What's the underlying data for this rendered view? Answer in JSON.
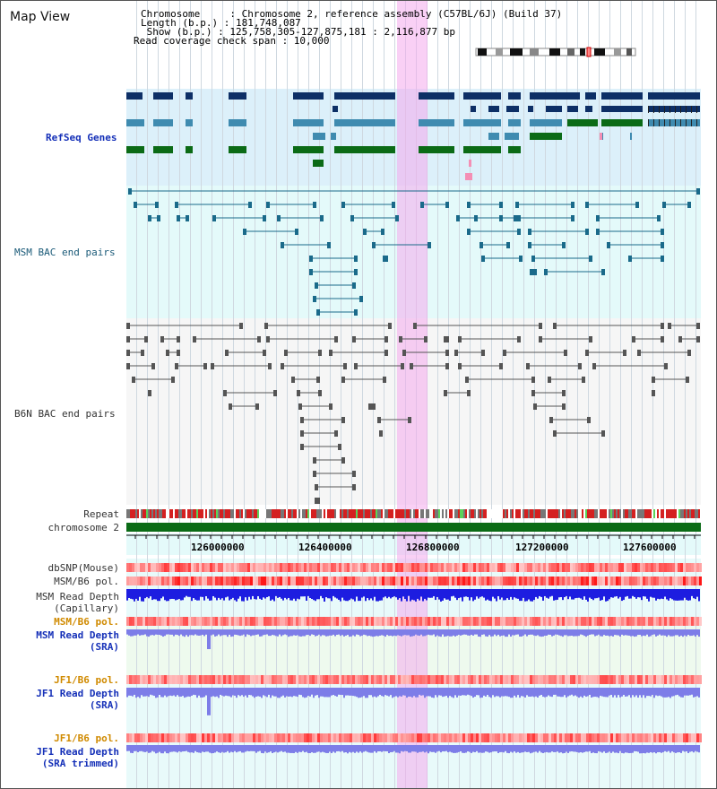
{
  "map_title": "Map View",
  "chromosome_info": {
    "rows": [
      "Chromosome     : Chromosome 2, reference assembly (C57BL/6J) (Build 37)",
      "Length (b.p.) : 181,748,087",
      " Show (b.p.) : 125,758,305-127,875,181 : 2,116,877 bp",
      "Read coverage check span : 10,000"
    ]
  },
  "tracks": {
    "refseq": "RefSeq Genes",
    "msm_bac": "MSM BAC end pairs",
    "b6n_bac": "B6N BAC end pairs",
    "repeat": "Repeat",
    "chromosome": "chromosome 2",
    "dbsnp": "dbSNP(Mouse)",
    "msm_b6_pol_1": "MSM/B6 pol.",
    "msm_read_depth_cap_1": "MSM Read Depth",
    "msm_read_depth_cap_2": "(Capillary)",
    "msm_b6_pol_2": "MSM/B6 pol.",
    "msm_read_depth_sra_1": "MSM Read Depth",
    "msm_read_depth_sra_2": "(SRA)",
    "jf1_b6_pol_1": "JF1/B6 pol.",
    "jf1_read_depth_sra_1": "JF1 Read Depth",
    "jf1_read_depth_sra_2": "(SRA)",
    "jf1_b6_pol_2": "JF1/B6 pol.",
    "jf1_read_depth_trim_1": "JF1 Read Depth",
    "jf1_read_depth_trim_2": "(SRA trimmed)"
  },
  "axis": {
    "ticks": [
      "126000000",
      "126400000",
      "126800000",
      "127200000",
      "127600000"
    ]
  },
  "colors": {
    "refseq_dark": "#0d2f66",
    "refseq_mid": "#3f8bb0",
    "refseq_green": "#0b6b16",
    "refseq_pink": "#f48fb5",
    "msm_bac": "#1a6a8a",
    "b6n_bac": "#555555",
    "chromosome_bar": "#0b6b16",
    "highlight": "#f4aaec",
    "depth_blue": "#1d1de0",
    "depth_light": "#7d7de8"
  }
}
